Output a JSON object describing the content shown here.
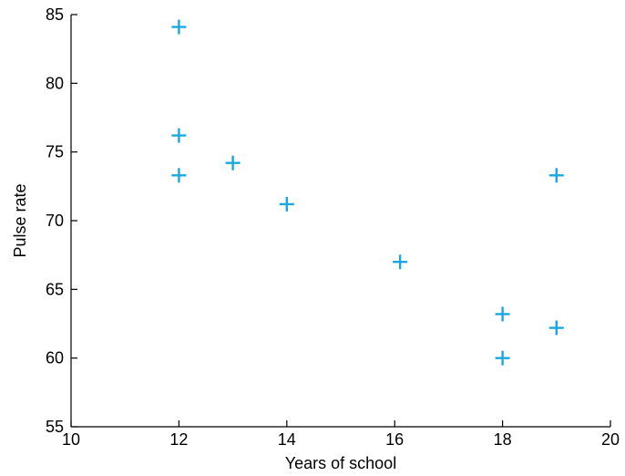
{
  "chart_data": {
    "type": "scatter",
    "title": "",
    "xlabel": "Years of school",
    "ylabel": "Pulse rate",
    "xlim": [
      10,
      20
    ],
    "ylim": [
      55,
      85
    ],
    "xticks": [
      10,
      12,
      14,
      16,
      18,
      20
    ],
    "yticks": [
      55,
      60,
      65,
      70,
      75,
      80,
      85
    ],
    "grid": false,
    "marker": "plus",
    "color": "#1aa7e0",
    "series": [
      {
        "x": [
          12,
          12,
          12,
          13,
          14,
          16.1,
          18,
          18,
          19,
          19
        ],
        "y": [
          84.1,
          76.2,
          73.3,
          74.2,
          71.2,
          67,
          63.2,
          60,
          73.3,
          62.2
        ]
      }
    ]
  }
}
